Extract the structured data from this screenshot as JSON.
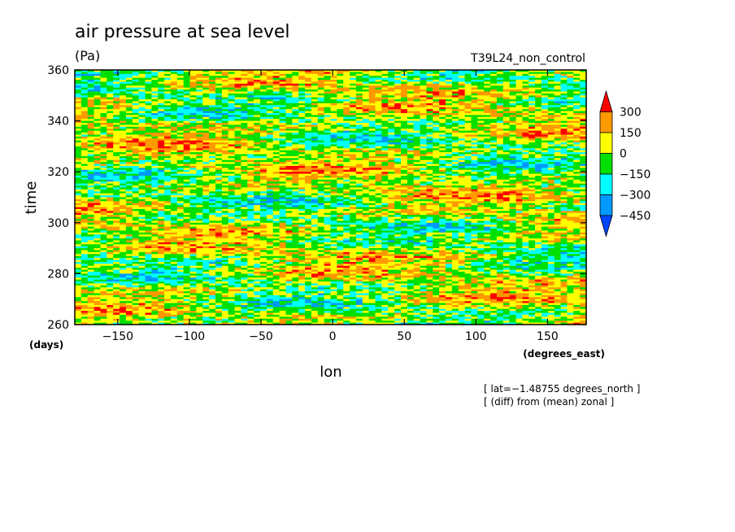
{
  "chart_data": {
    "type": "heatmap",
    "title": "air pressure at sea level",
    "subtitle_units": "(Pa)",
    "run_label": "T39L24_non_control",
    "xlabel": "lon",
    "x_units": "(degrees_east)",
    "ylabel": "time",
    "y_units": "(days)",
    "xlim": [
      -180,
      177
    ],
    "ylim": [
      260,
      360
    ],
    "x_ticks": [
      -150,
      -100,
      -50,
      0,
      50,
      100,
      150
    ],
    "y_ticks": [
      260,
      280,
      300,
      320,
      340,
      360
    ],
    "annotations": [
      "[ lat=−1.48755 degrees_north ]",
      "[ (diff) from (mean) zonal ]"
    ],
    "legend": {
      "placement": "right",
      "labels": [
        "300",
        "150",
        "0",
        "−150",
        "−300",
        "−450"
      ],
      "bins": [
        {
          "from": 300,
          "to": null,
          "color": "#ff0000",
          "shape": "triangle-top"
        },
        {
          "from": 150,
          "to": 300,
          "color": "#ff9900"
        },
        {
          "from": 0,
          "to": 150,
          "color": "#ffff00"
        },
        {
          "from": -150,
          "to": 0,
          "color": "#00e000"
        },
        {
          "from": -300,
          "to": -150,
          "color": "#00ffff"
        },
        {
          "from": -450,
          "to": -300,
          "color": "#0099ff"
        },
        {
          "from": null,
          "to": -450,
          "color": "#0044ff",
          "shape": "triangle-bottom"
        }
      ]
    },
    "grid": false
  }
}
